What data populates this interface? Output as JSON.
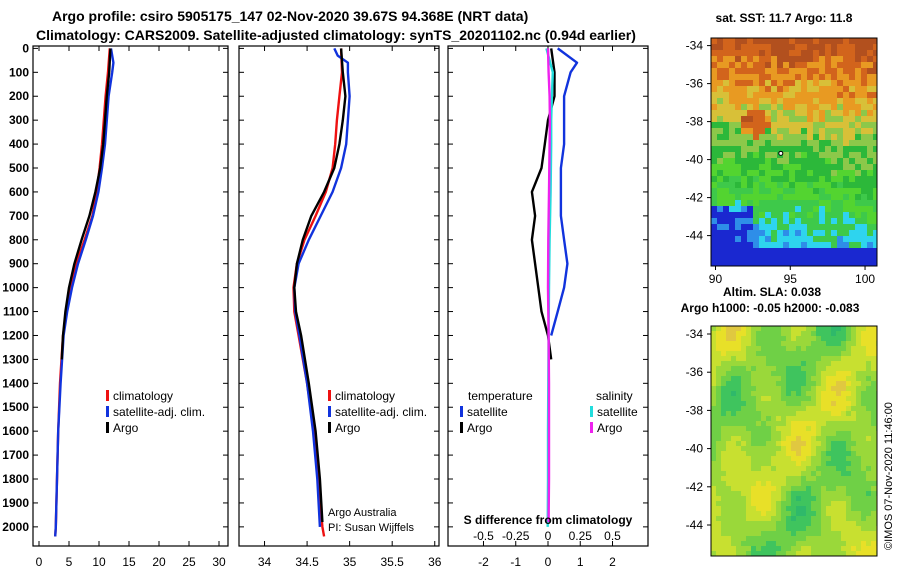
{
  "header": {
    "line1": "Argo profile: csiro 5905175_147 02-Nov-2020 39.67S 94.368E (NRT data)",
    "line2": "Climatology: CARS2009. Satellite-adjusted climatology: synTS_20201102.nc (0.94d earlier)"
  },
  "colors": {
    "climatology": "#ee1111",
    "satellite": "#1133dd",
    "argo": "#000000",
    "salinity": "#22dddd",
    "argo_sal": "#ee22ee"
  },
  "chart_data": [
    {
      "type": "line",
      "name": "temperature-profile",
      "ylim": [
        2080,
        -10
      ],
      "xlim": [
        -1,
        31.5
      ],
      "yticks": [
        0,
        100,
        200,
        300,
        400,
        500,
        600,
        700,
        800,
        900,
        1000,
        1100,
        1200,
        1300,
        1400,
        1500,
        1600,
        1700,
        1800,
        1900,
        2000
      ],
      "xticks": [
        0,
        5,
        10,
        15,
        20,
        25,
        30
      ],
      "legend": [
        "climatology",
        "satellite-adj. clim.",
        "Argo"
      ],
      "series": [
        {
          "name": "climatology",
          "key": "climatology",
          "depth": [
            0,
            100,
            200,
            300,
            400,
            500,
            600,
            700,
            800,
            900,
            1000,
            1100,
            1200,
            1400,
            1600,
            1800,
            2000,
            2040
          ],
          "values": [
            11.8,
            11.5,
            11.1,
            10.8,
            10.5,
            10.1,
            9.6,
            8.9,
            7.6,
            6.2,
            5.3,
            4.6,
            4.0,
            3.5,
            3.2,
            3.0,
            2.8,
            2.7
          ]
        },
        {
          "name": "satellite-adj. clim.",
          "key": "satellite",
          "depth": [
            0,
            60,
            100,
            200,
            300,
            400,
            500,
            600,
            700,
            800,
            900,
            1000,
            1100,
            1200,
            1400,
            1600,
            1800,
            2000,
            2040
          ],
          "values": [
            12.0,
            12.4,
            12.2,
            11.6,
            11.3,
            11.0,
            10.5,
            9.9,
            9.0,
            7.8,
            6.5,
            5.5,
            4.7,
            4.1,
            3.6,
            3.2,
            3.0,
            2.8,
            2.7
          ]
        },
        {
          "name": "Argo",
          "key": "argo",
          "depth": [
            0,
            100,
            200,
            300,
            400,
            500,
            600,
            700,
            800,
            900,
            1000,
            1100,
            1200,
            1300
          ],
          "values": [
            11.9,
            11.7,
            11.3,
            11.0,
            10.7,
            10.2,
            9.4,
            8.4,
            7.1,
            5.9,
            5.0,
            4.4,
            4.0,
            3.8
          ]
        }
      ]
    },
    {
      "type": "line",
      "name": "salinity-profile",
      "ylim": [
        2080,
        -10
      ],
      "xlim": [
        33.7,
        36.05
      ],
      "xticks": [
        34,
        34.5,
        35,
        35.5,
        36
      ],
      "legend": [
        "climatology",
        "satellite-adj. clim.",
        "Argo"
      ],
      "annotations": [
        "Argo Australia",
        "PI: Susan Wijffels"
      ],
      "series": [
        {
          "name": "climatology",
          "key": "climatology",
          "depth": [
            0,
            100,
            200,
            300,
            400,
            500,
            600,
            700,
            800,
            900,
            1000,
            1100,
            1200,
            1400,
            1600,
            1800,
            2000,
            2040
          ],
          "values": [
            34.9,
            34.91,
            34.88,
            34.85,
            34.83,
            34.8,
            34.72,
            34.6,
            34.47,
            34.38,
            34.34,
            34.35,
            34.4,
            34.5,
            34.58,
            34.63,
            34.68,
            34.7
          ]
        },
        {
          "name": "satellite-adj. clim.",
          "key": "satellite",
          "depth": [
            0,
            30,
            60,
            100,
            200,
            300,
            400,
            500,
            600,
            700,
            800,
            900,
            1000,
            1100,
            1200,
            1400,
            1600,
            1800,
            2000
          ],
          "values": [
            34.82,
            34.86,
            34.98,
            34.98,
            35.0,
            34.98,
            34.96,
            34.9,
            34.8,
            34.66,
            34.52,
            34.4,
            34.35,
            34.36,
            34.41,
            34.5,
            34.57,
            34.62,
            34.65
          ]
        },
        {
          "name": "Argo",
          "key": "argo",
          "depth": [
            0,
            100,
            200,
            300,
            400,
            500,
            600,
            700,
            800,
            900,
            1000,
            1100,
            1200,
            1400,
            1600,
            1800,
            1980
          ],
          "values": [
            34.9,
            34.92,
            34.95,
            34.92,
            34.88,
            34.82,
            34.7,
            34.55,
            34.45,
            34.38,
            34.35,
            34.37,
            34.43,
            34.52,
            34.6,
            34.65,
            34.68
          ]
        }
      ]
    },
    {
      "type": "line",
      "name": "difference-from-climatology",
      "ylim": [
        2080,
        -10
      ],
      "xlim": [
        -3.1,
        3.1
      ],
      "xticks": [
        -2,
        -1,
        0,
        1,
        2
      ],
      "s_ticks": [
        -0.5,
        -0.25,
        0,
        0.25,
        0.5
      ],
      "xlabel": "S difference from climatology",
      "legend": {
        "temperature": [
          "satellite",
          "Argo"
        ],
        "salinity": [
          "satellite",
          "Argo"
        ]
      },
      "series": [
        {
          "name": "temperature satellite",
          "key": "satellite",
          "depth": [
            0,
            60,
            100,
            200,
            300,
            400,
            500,
            600,
            700,
            800,
            900,
            1000,
            1100,
            1200
          ],
          "values": [
            0.3,
            0.9,
            0.7,
            0.5,
            0.5,
            0.5,
            0.4,
            0.4,
            0.4,
            0.5,
            0.6,
            0.5,
            0.3,
            0.1
          ]
        },
        {
          "name": "temperature Argo",
          "key": "argo",
          "depth": [
            0,
            100,
            200,
            300,
            400,
            500,
            600,
            700,
            800,
            900,
            1000,
            1100,
            1200,
            1300
          ],
          "values": [
            0.1,
            0.2,
            0.2,
            0.0,
            -0.1,
            -0.2,
            -0.5,
            -0.4,
            -0.5,
            -0.4,
            -0.3,
            -0.2,
            0.0,
            0.1
          ]
        },
        {
          "name": "salinity satellite",
          "key": "salinity",
          "depth": [
            0,
            100,
            200,
            300,
            400,
            600,
            800,
            1000,
            1200,
            1400,
            1600,
            1800,
            2000
          ],
          "values": [
            -0.05,
            0.15,
            0.12,
            0.1,
            0.1,
            0.08,
            0.05,
            0.03,
            0.02,
            0.01,
            0.0,
            0.0,
            -0.01
          ]
        },
        {
          "name": "salinity Argo",
          "key": "argo_sal",
          "depth": [
            0,
            100,
            200,
            300,
            400,
            600,
            800,
            1000,
            1200,
            1400,
            1600,
            1800,
            1980
          ],
          "values": [
            0.0,
            0.02,
            0.05,
            0.06,
            0.05,
            0.03,
            0.01,
            0.0,
            0.02,
            0.03,
            0.03,
            0.03,
            0.02
          ]
        }
      ]
    }
  ],
  "maps": {
    "sst": {
      "title": "sat. SST: 11.7  Argo: 11.8",
      "yticks": [
        "-34",
        "-36",
        "-38",
        "-40",
        "-42",
        "-44"
      ],
      "xticks": [
        "90",
        "95",
        "100"
      ],
      "xlim": [
        89.7,
        100.8
      ],
      "ylim": [
        -45.6,
        -33.6
      ],
      "argo_position": [
        94.368,
        -39.67
      ]
    },
    "sla": {
      "title1": "Altim. SLA: 0.038",
      "title2": "Argo h1000: -0.05 h2000: -0.083",
      "yticks": [
        "-34",
        "-36",
        "-38",
        "-40",
        "-42",
        "-44"
      ]
    },
    "timestamp": "©IMOS 07-Nov-2020 11:46:00"
  }
}
